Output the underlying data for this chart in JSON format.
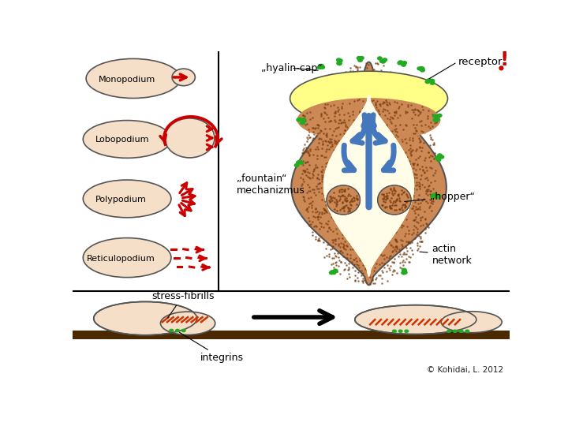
{
  "bg_color": "#ffffff",
  "cell_fill": "#f5dfc8",
  "cell_edge": "#555555",
  "yellow_fill": "#ffff88",
  "outer_fill": "#cc8855",
  "inner_fill": "#fffde8",
  "green_color": "#22aa22",
  "blue_color": "#4477bb",
  "red_color": "#cc0000",
  "dark_red": "#cc0000",
  "bar_color": "#4a2800",
  "stress_color": "#cc3300",
  "labels": {
    "monopodium": "Monopodium",
    "lobopodium": "Lobopodium",
    "polypodium": "Polypodium",
    "reticulopodium": "Reticulopodium",
    "hyalin_cap": "„hyalin-cap“",
    "receptor": "receptor",
    "fountain": "„fountain“\nmechanizmus",
    "hopper": "„hopper“",
    "actin_network": "actin\nnetwork",
    "stress_fibrills": "stress-fibrills",
    "integrins": "integrins",
    "copyright": "© Kohidai, L. 2012"
  }
}
